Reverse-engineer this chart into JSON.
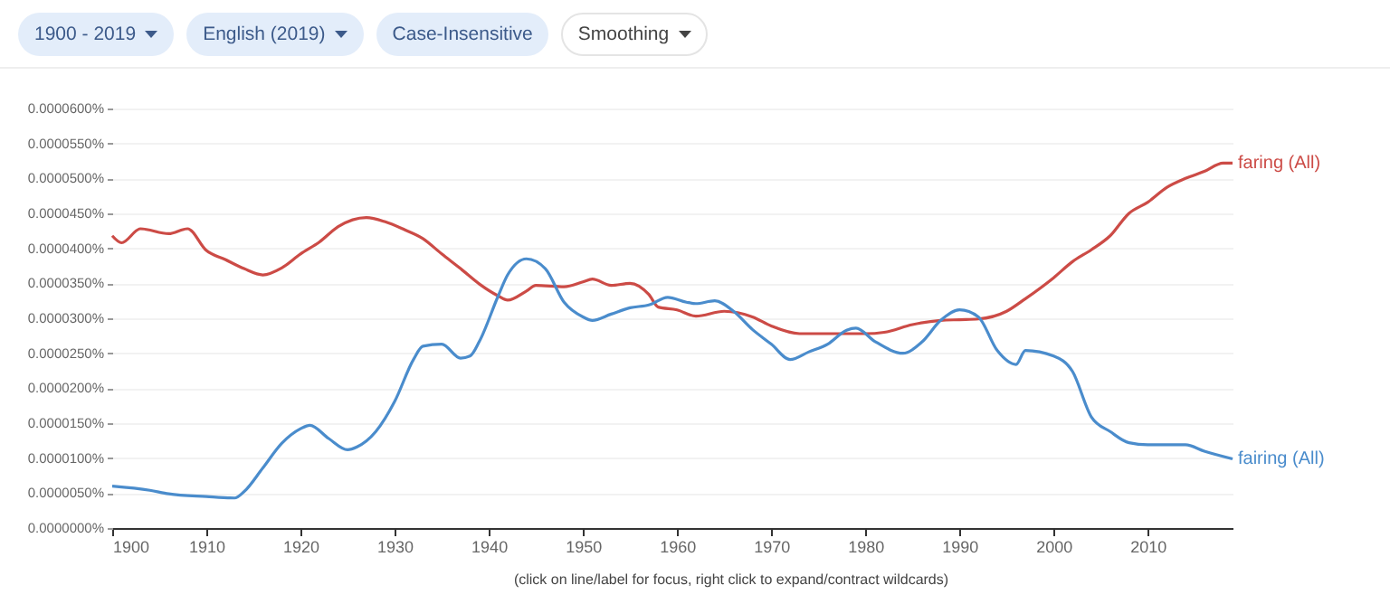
{
  "chart_data": {
    "type": "line",
    "grid": "y",
    "legend": false,
    "xlim": [
      1900,
      2019
    ],
    "xticks": [
      1900,
      1910,
      1920,
      1930,
      1940,
      1950,
      1960,
      1970,
      1980,
      1990,
      2000,
      2010
    ],
    "ylim": [
      0,
      6e-05
    ],
    "yticks": [
      {
        "value": 0,
        "label": "0.0000000%"
      },
      {
        "value": 5e-06,
        "label": "0.0000050%"
      },
      {
        "value": 1e-05,
        "label": "0.0000100%"
      },
      {
        "value": 1.5e-05,
        "label": "0.0000150%"
      },
      {
        "value": 2e-05,
        "label": "0.0000200%"
      },
      {
        "value": 2.5e-05,
        "label": "0.0000250%"
      },
      {
        "value": 3e-05,
        "label": "0.0000300%"
      },
      {
        "value": 3.5e-05,
        "label": "0.0000350%"
      },
      {
        "value": 4e-05,
        "label": "0.0000400%"
      },
      {
        "value": 4.5e-05,
        "label": "0.0000450%"
      },
      {
        "value": 5e-05,
        "label": "0.0000500%"
      },
      {
        "value": 5.5e-05,
        "label": "0.0000550%"
      },
      {
        "value": 6e-05,
        "label": "0.0000600%"
      }
    ],
    "annotations": [
      "1900 - 2019",
      "English (2019)",
      "Case-Insensitive",
      "Smoothing",
      "(click on line/label for focus, right click to expand/contract wildcards)"
    ],
    "series": [
      {
        "name": "faring (All)",
        "color": "#cc4b46",
        "x": [
          1900,
          1901,
          1903,
          1906,
          1908,
          1910,
          1912,
          1914,
          1916,
          1918,
          1920,
          1922,
          1924,
          1927,
          1929,
          1931,
          1933,
          1935,
          1937,
          1939,
          1941,
          1942,
          1944,
          1945,
          1948,
          1950,
          1951,
          1953,
          1955,
          1957,
          1958,
          1960,
          1962,
          1965,
          1968,
          1970,
          1973,
          1976,
          1980,
          1982,
          1985,
          1988,
          1990,
          1992,
          1995,
          1997,
          2000,
          2002,
          2004,
          2006,
          2008,
          2010,
          2012,
          2014,
          2016,
          2018,
          2019
        ],
        "values": [
          4.18e-05,
          4.08e-05,
          4.28e-05,
          4.21e-05,
          4.28e-05,
          3.97e-05,
          3.84e-05,
          3.71e-05,
          3.62e-05,
          3.72e-05,
          3.92e-05,
          4.09e-05,
          4.31e-05,
          4.44e-05,
          4.38e-05,
          4.27e-05,
          4.14e-05,
          3.92e-05,
          3.71e-05,
          3.49e-05,
          3.32e-05,
          3.26e-05,
          3.39e-05,
          3.47e-05,
          3.45e-05,
          3.52e-05,
          3.56e-05,
          3.47e-05,
          3.5e-05,
          3.34e-05,
          3.16e-05,
          3.12e-05,
          3.03e-05,
          3.1e-05,
          3.02e-05,
          2.89e-05,
          2.78e-05,
          2.78e-05,
          2.78e-05,
          2.8e-05,
          2.91e-05,
          2.97e-05,
          2.98e-05,
          2.99e-05,
          3.1e-05,
          3.28e-05,
          3.58e-05,
          3.81e-05,
          3.98e-05,
          4.18e-05,
          4.5e-05,
          4.66e-05,
          4.87e-05,
          5e-05,
          5.1e-05,
          5.22e-05,
          5.22e-05
        ]
      },
      {
        "name": "fairing (All)",
        "color": "#4a8ccc",
        "x": [
          1900,
          1904,
          1906,
          1910,
          1913,
          1914,
          1916,
          1918,
          1920,
          1921,
          1923,
          1925,
          1926,
          1928,
          1930,
          1932,
          1933,
          1935,
          1937,
          1938,
          1939,
          1941,
          1942,
          1944,
          1946,
          1948,
          1950,
          1951,
          1953,
          1955,
          1957,
          1959,
          1961,
          1962,
          1964,
          1966,
          1968,
          1970,
          1972,
          1974,
          1976,
          1978,
          1979,
          1981,
          1984,
          1986,
          1988,
          1990,
          1992,
          1994,
          1996,
          1997,
          2000,
          2002,
          2004,
          2006,
          2008,
          2010,
          2014,
          2016,
          2019
        ],
        "values": [
          6e-06,
          5.4e-06,
          4.9e-06,
          4.5e-06,
          4.3e-06,
          5.2e-06,
          8.6e-06,
          1.21e-05,
          1.42e-05,
          1.47e-05,
          1.28e-05,
          1.12e-05,
          1.16e-05,
          1.38e-05,
          1.81e-05,
          2.41e-05,
          2.6e-05,
          2.63e-05,
          2.43e-05,
          2.46e-05,
          2.67e-05,
          3.32e-05,
          3.62e-05,
          3.85e-05,
          3.71e-05,
          3.23e-05,
          3.02e-05,
          2.97e-05,
          3.06e-05,
          3.15e-05,
          3.19e-05,
          3.3e-05,
          3.23e-05,
          3.21e-05,
          3.25e-05,
          3.1e-05,
          2.84e-05,
          2.63e-05,
          2.41e-05,
          2.52e-05,
          2.63e-05,
          2.83e-05,
          2.86e-05,
          2.67e-05,
          2.5e-05,
          2.66e-05,
          2.97e-05,
          3.12e-05,
          3.02e-05,
          2.54e-05,
          2.34e-05,
          2.54e-05,
          2.46e-05,
          2.24e-05,
          1.59e-05,
          1.38e-05,
          1.22e-05,
          1.19e-05,
          1.19e-05,
          1.1e-05,
          9.9e-06
        ]
      }
    ]
  }
}
